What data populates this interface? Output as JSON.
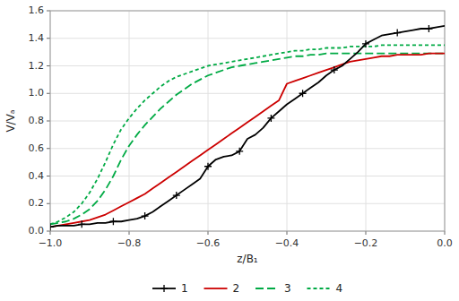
{
  "chart_data": {
    "type": "line",
    "x_label": "z/B₁",
    "y_label": "V/Vₐ",
    "x": [
      -1.0,
      -0.98,
      -0.96,
      -0.94,
      -0.92,
      -0.9,
      -0.88,
      -0.86,
      -0.84,
      -0.82,
      -0.8,
      -0.78,
      -0.76,
      -0.74,
      -0.72,
      -0.7,
      -0.68,
      -0.66,
      -0.64,
      -0.62,
      -0.6,
      -0.58,
      -0.56,
      -0.54,
      -0.52,
      -0.5,
      -0.48,
      -0.46,
      -0.44,
      -0.42,
      -0.4,
      -0.38,
      -0.36,
      -0.34,
      -0.32,
      -0.3,
      -0.28,
      -0.26,
      -0.24,
      -0.22,
      -0.2,
      -0.18,
      -0.16,
      -0.14,
      -0.12,
      -0.1,
      -0.08,
      -0.06,
      -0.04,
      -0.02,
      0.0
    ],
    "series": [
      {
        "name": "1",
        "color": "#000000",
        "line_style": "solid",
        "marker": "plus",
        "values": [
          0.03,
          0.04,
          0.04,
          0.04,
          0.05,
          0.05,
          0.06,
          0.06,
          0.07,
          0.07,
          0.08,
          0.09,
          0.11,
          0.14,
          0.18,
          0.22,
          0.26,
          0.3,
          0.34,
          0.38,
          0.47,
          0.52,
          0.54,
          0.55,
          0.58,
          0.67,
          0.7,
          0.75,
          0.82,
          0.87,
          0.92,
          0.96,
          1.0,
          1.04,
          1.08,
          1.13,
          1.17,
          1.2,
          1.25,
          1.3,
          1.36,
          1.39,
          1.42,
          1.43,
          1.44,
          1.45,
          1.46,
          1.47,
          1.47,
          1.48,
          1.49
        ]
      },
      {
        "name": "2",
        "color": "#cc0000",
        "line_style": "solid",
        "values": [
          0.03,
          0.04,
          0.05,
          0.06,
          0.07,
          0.08,
          0.1,
          0.12,
          0.15,
          0.18,
          0.21,
          0.24,
          0.27,
          0.31,
          0.35,
          0.39,
          0.43,
          0.47,
          0.51,
          0.55,
          0.59,
          0.63,
          0.67,
          0.71,
          0.75,
          0.79,
          0.83,
          0.87,
          0.91,
          0.95,
          1.07,
          1.09,
          1.11,
          1.13,
          1.15,
          1.17,
          1.19,
          1.21,
          1.23,
          1.24,
          1.25,
          1.26,
          1.27,
          1.27,
          1.28,
          1.28,
          1.28,
          1.28,
          1.29,
          1.29,
          1.29
        ]
      },
      {
        "name": "3",
        "color": "#00aa44",
        "line_style": "long-dashed",
        "values": [
          0.05,
          0.06,
          0.07,
          0.09,
          0.12,
          0.16,
          0.22,
          0.3,
          0.4,
          0.52,
          0.62,
          0.7,
          0.77,
          0.83,
          0.89,
          0.94,
          0.99,
          1.03,
          1.07,
          1.1,
          1.13,
          1.15,
          1.17,
          1.19,
          1.2,
          1.21,
          1.22,
          1.23,
          1.24,
          1.25,
          1.26,
          1.27,
          1.27,
          1.28,
          1.28,
          1.29,
          1.29,
          1.29,
          1.29,
          1.29,
          1.29,
          1.29,
          1.29,
          1.29,
          1.29,
          1.29,
          1.29,
          1.29,
          1.29,
          1.29,
          1.29
        ]
      },
      {
        "name": "4",
        "color": "#00aa44",
        "line_style": "dashed",
        "values": [
          0.05,
          0.07,
          0.1,
          0.14,
          0.2,
          0.28,
          0.38,
          0.5,
          0.63,
          0.74,
          0.82,
          0.89,
          0.95,
          1.0,
          1.05,
          1.09,
          1.12,
          1.14,
          1.16,
          1.18,
          1.2,
          1.21,
          1.22,
          1.23,
          1.24,
          1.25,
          1.26,
          1.27,
          1.28,
          1.29,
          1.3,
          1.31,
          1.31,
          1.32,
          1.32,
          1.33,
          1.33,
          1.33,
          1.34,
          1.34,
          1.34,
          1.34,
          1.35,
          1.35,
          1.35,
          1.35,
          1.35,
          1.35,
          1.35,
          1.35,
          1.35
        ]
      }
    ],
    "xlim": [
      -1.0,
      0.0
    ],
    "ylim": [
      0.0,
      1.6
    ],
    "xticks": [
      {
        "value": -1.0,
        "label": "−1.0"
      },
      {
        "value": -0.8,
        "label": "−0.8"
      },
      {
        "value": -0.6,
        "label": "−0.6"
      },
      {
        "value": -0.4,
        "label": "−0.4"
      },
      {
        "value": -0.2,
        "label": "−0.2"
      },
      {
        "value": 0.0,
        "label": "0.0"
      }
    ],
    "yticks": [
      {
        "value": 0.0,
        "label": "0.0"
      },
      0.2,
      0.4,
      0.6,
      0.8,
      {
        "value": 1.0,
        "label": "1.0"
      },
      1.2,
      1.4,
      1.6
    ],
    "grid": true
  }
}
